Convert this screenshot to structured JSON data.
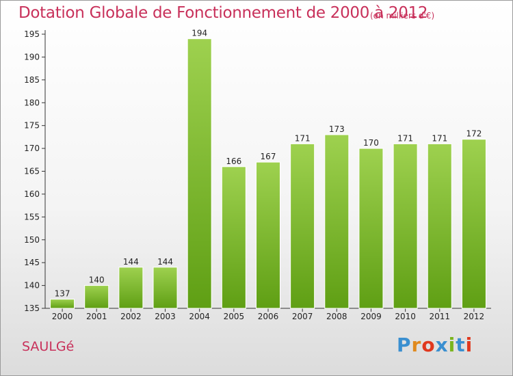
{
  "header": {
    "title": "Dotation Globale de Fonctionnement de 2000 à 2012",
    "unit_note": "(en milliers d'€)"
  },
  "footer": {
    "city": "SAULGé",
    "logo": {
      "text": "Proxiti",
      "letters": [
        "P",
        "r",
        "o",
        "x",
        "i",
        "t",
        "i"
      ],
      "letter_colors": [
        "#3a8fd0",
        "#e08a1e",
        "#e0381e",
        "#3a8fd0",
        "#7ab51d",
        "#3a8fd0",
        "#e0381e"
      ]
    }
  },
  "colors": {
    "accent_text": "#c8305a",
    "bar_light": "#9ed14f",
    "bar_dark": "#5f9f14"
  },
  "chart_data": {
    "type": "bar",
    "categories": [
      "2000",
      "2001",
      "2002",
      "2003",
      "2004",
      "2005",
      "2006",
      "2007",
      "2008",
      "2009",
      "2010",
      "2011",
      "2012"
    ],
    "values": [
      137,
      140,
      144,
      144,
      194,
      166,
      167,
      171,
      173,
      170,
      171,
      171,
      172
    ],
    "data_labels": [
      "137",
      "140",
      "144",
      "144",
      "194",
      "166",
      "167",
      "171",
      "173",
      "170",
      "171",
      "171",
      "172"
    ],
    "ylim": [
      135,
      195
    ],
    "yticks": [
      135,
      140,
      145,
      150,
      155,
      160,
      165,
      170,
      175,
      180,
      185,
      190,
      195
    ],
    "grid": false,
    "legend": "none"
  }
}
